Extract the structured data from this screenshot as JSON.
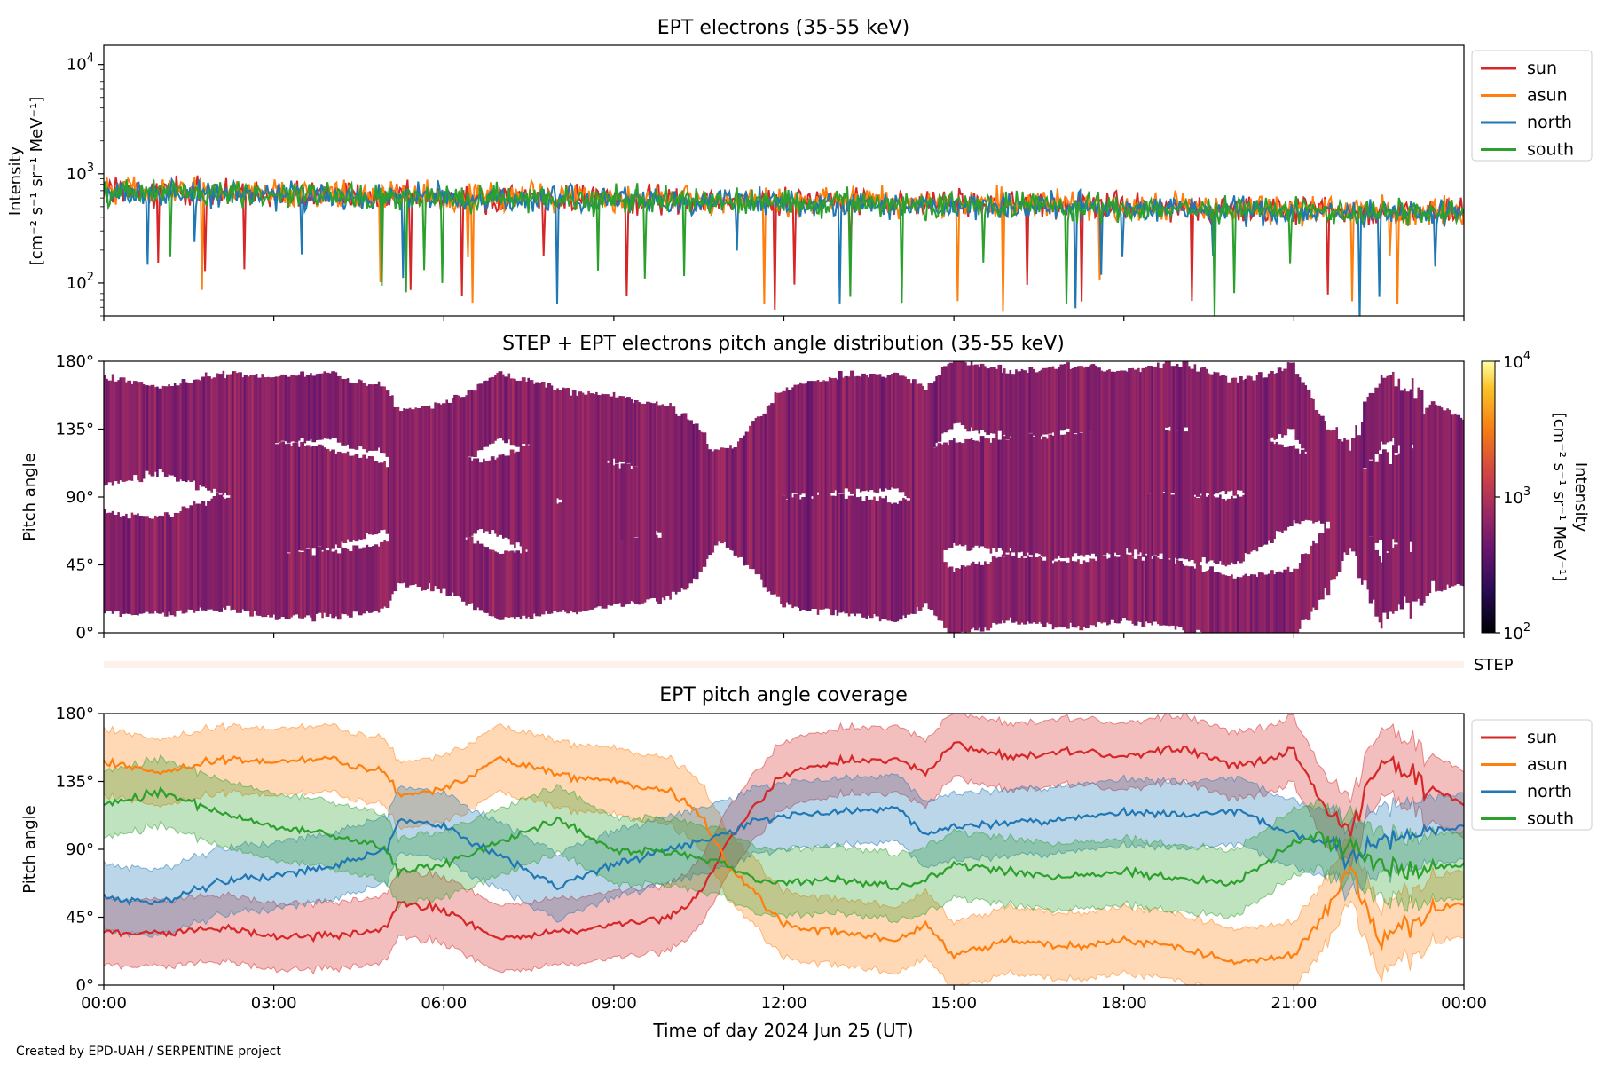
{
  "figure": {
    "credit": "Created by EPD-UAH / SERPENTINE project",
    "xlabel": "Time of day 2024 Jun 25 (UT)",
    "x_tick_labels": [
      "00:00",
      "03:00",
      "06:00",
      "09:00",
      "12:00",
      "15:00",
      "18:00",
      "21:00",
      "00:00"
    ]
  },
  "colors": {
    "sun": "#d62728",
    "asun": "#ff7f0e",
    "north": "#1f77b4",
    "south": "#2ca02c",
    "step_strip": "#fdf1ec"
  },
  "chart_data": [
    {
      "type": "line",
      "title": "EPT electrons (35-55 keV)",
      "ylabel_line1": "Intensity",
      "ylabel_line2": "[cm⁻² s⁻¹ sr⁻¹ MeV⁻¹]",
      "yscale": "log",
      "x_range_hours": [
        0,
        24
      ],
      "ylim": [
        50,
        15000
      ],
      "y_ticks": [
        {
          "value": 100,
          "base": "10",
          "exp": "2"
        },
        {
          "value": 1000,
          "base": "10",
          "exp": "3"
        },
        {
          "value": 10000,
          "base": "10",
          "exp": "4"
        }
      ],
      "legend_position": "outside-right",
      "series": [
        {
          "name": "sun",
          "key": "sun",
          "x_hours": [
            0,
            1.5,
            3,
            4.5,
            6,
            7.5,
            9,
            10.5,
            12,
            13.5,
            15,
            16.5,
            18,
            19.5,
            21,
            22.5,
            24
          ],
          "values": [
            700,
            680,
            650,
            640,
            620,
            600,
            590,
            580,
            560,
            550,
            540,
            520,
            500,
            480,
            470,
            450,
            450
          ]
        },
        {
          "name": "asun",
          "key": "asun",
          "x_hours": [
            0,
            1.5,
            3,
            4.5,
            6,
            7.5,
            9,
            10.5,
            12,
            13.5,
            15,
            16.5,
            18,
            19.5,
            21,
            22.5,
            24
          ],
          "values": [
            720,
            690,
            660,
            650,
            630,
            610,
            600,
            590,
            570,
            560,
            550,
            530,
            510,
            490,
            480,
            460,
            460
          ]
        },
        {
          "name": "north",
          "key": "north",
          "x_hours": [
            0,
            1.5,
            3,
            4.5,
            6,
            7.5,
            9,
            10.5,
            12,
            13.5,
            15,
            16.5,
            18,
            19.5,
            21,
            22.5,
            24
          ],
          "values": [
            680,
            660,
            640,
            620,
            600,
            580,
            570,
            560,
            540,
            530,
            520,
            500,
            480,
            460,
            450,
            430,
            430
          ]
        },
        {
          "name": "south",
          "key": "south",
          "x_hours": [
            0,
            1.5,
            3,
            4.5,
            6,
            7.5,
            9,
            10.5,
            12,
            13.5,
            15,
            16.5,
            18,
            19.5,
            21,
            22.5,
            24
          ],
          "values": [
            690,
            670,
            640,
            630,
            610,
            590,
            580,
            570,
            550,
            540,
            530,
            510,
            490,
            470,
            460,
            440,
            440
          ]
        }
      ]
    },
    {
      "type": "heatmap",
      "title": "STEP + EPT electrons pitch angle distribution (35-55 keV)",
      "ylabel": "Pitch angle",
      "y_tick_labels": [
        "0°",
        "45°",
        "90°",
        "135°",
        "180°"
      ],
      "ylim": [
        0,
        180
      ],
      "colorbar": {
        "label_line1": "Intensity",
        "label_line2": "[cm⁻² s⁻¹ sr⁻¹ MeV⁻¹]",
        "scale": "log",
        "range": [
          100,
          10000
        ],
        "ticks": [
          {
            "value": 100,
            "base": "10",
            "exp": "2"
          },
          {
            "value": 1000,
            "base": "10",
            "exp": "3"
          },
          {
            "value": 10000,
            "base": "10",
            "exp": "4"
          }
        ],
        "colormap": "inferno"
      },
      "typical_intensity": 600
    },
    {
      "type": "bar",
      "label": "STEP",
      "note_role": "coverage-strip"
    },
    {
      "type": "line",
      "title": "EPT pitch angle coverage",
      "ylabel": "Pitch angle",
      "y_tick_labels": [
        "0°",
        "45°",
        "90°",
        "135°",
        "180°"
      ],
      "ylim": [
        0,
        180
      ],
      "legend_position": "outside-right",
      "band_half_width_deg": 22,
      "series": [
        {
          "name": "sun",
          "key": "sun",
          "x_hours": [
            0,
            1,
            2,
            3,
            4,
            5,
            5.2,
            6,
            7,
            8,
            9,
            10,
            10.5,
            11,
            11.5,
            12,
            13,
            14,
            14.5,
            15,
            16,
            17,
            18,
            19,
            20,
            21,
            21.5,
            22,
            22.5,
            23,
            24
          ],
          "values": [
            35,
            35,
            38,
            33,
            32,
            38,
            55,
            50,
            30,
            35,
            40,
            45,
            60,
            95,
            120,
            140,
            148,
            150,
            140,
            160,
            150,
            155,
            152,
            158,
            145,
            155,
            120,
            100,
            150,
            140,
            120
          ]
        },
        {
          "name": "asun",
          "key": "asun",
          "x_hours": [
            0,
            1,
            2,
            3,
            4,
            5,
            5.2,
            6,
            7,
            8,
            9,
            10,
            10.5,
            11,
            11.5,
            12,
            13,
            14,
            14.5,
            15,
            16,
            17,
            18,
            19,
            20,
            21,
            21.5,
            22,
            22.5,
            23,
            24
          ],
          "values": [
            148,
            140,
            150,
            148,
            150,
            140,
            125,
            130,
            150,
            140,
            135,
            128,
            115,
            80,
            60,
            40,
            35,
            30,
            40,
            20,
            30,
            25,
            30,
            25,
            15,
            20,
            45,
            80,
            30,
            40,
            55
          ]
        },
        {
          "name": "north",
          "key": "north",
          "x_hours": [
            0,
            1,
            2,
            3,
            4,
            5,
            5.2,
            6,
            7,
            8,
            9,
            10,
            10.5,
            11,
            11.5,
            12,
            13,
            14,
            14.5,
            15,
            16,
            17,
            18,
            19,
            20,
            21,
            21.5,
            22,
            22.5,
            23,
            24
          ],
          "values": [
            58,
            55,
            68,
            72,
            78,
            90,
            110,
            105,
            85,
            65,
            80,
            90,
            95,
            100,
            110,
            112,
            115,
            118,
            100,
            105,
            108,
            110,
            115,
            112,
            115,
            100,
            95,
            85,
            95,
            100,
            105
          ]
        },
        {
          "name": "south",
          "key": "south",
          "x_hours": [
            0,
            1,
            2,
            3,
            4,
            5,
            5.2,
            6,
            7,
            8,
            9,
            10,
            10.5,
            11,
            11.5,
            12,
            13,
            14,
            14.5,
            15,
            16,
            17,
            18,
            19,
            20,
            21,
            21.5,
            22,
            22.5,
            23,
            24
          ],
          "values": [
            120,
            128,
            115,
            105,
            100,
            90,
            75,
            80,
            95,
            110,
            90,
            88,
            85,
            80,
            70,
            68,
            70,
            65,
            70,
            80,
            75,
            72,
            75,
            70,
            68,
            95,
            100,
            90,
            80,
            75,
            80
          ]
        }
      ]
    }
  ]
}
